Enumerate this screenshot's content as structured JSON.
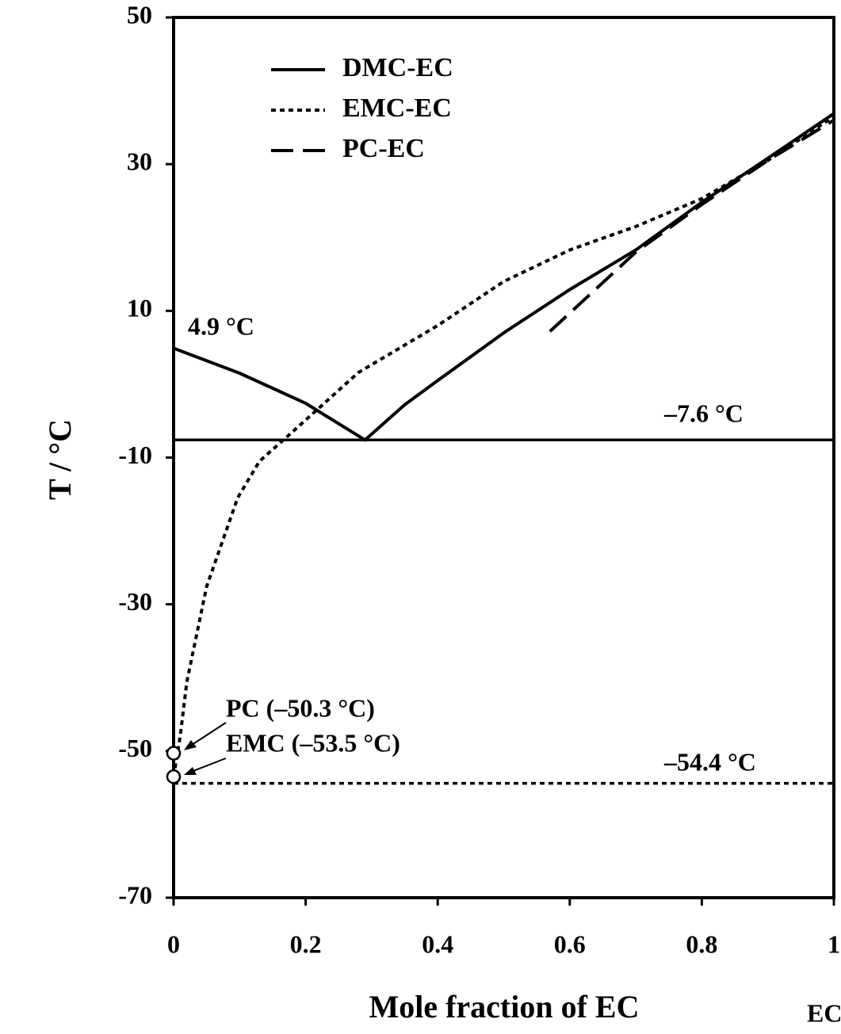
{
  "chart_data": {
    "type": "line",
    "xlabel": "Mole fraction of EC",
    "ylabel": "T / °C",
    "xlim": [
      0,
      1
    ],
    "xticks": [
      0,
      0.2,
      0.4,
      0.6,
      0.8,
      1
    ],
    "ylim": [
      -70,
      50
    ],
    "yticks": [
      50,
      30,
      10,
      -10,
      -30,
      -50,
      -70
    ],
    "legend": "upper left",
    "series": [
      {
        "name": "DMC-EC",
        "color": "#000000",
        "dash": "solid",
        "x": [
          0,
          0.1,
          0.2,
          0.29,
          0.35,
          0.4,
          0.5,
          0.6,
          0.7,
          0.8,
          0.9,
          1
        ],
        "values": [
          4.9,
          1.5,
          -2.6,
          -7.6,
          -2.8,
          0.5,
          7,
          12.9,
          18.3,
          24.8,
          30.8,
          36.9
        ]
      },
      {
        "name": "EMC-EC",
        "color": "#000000",
        "dash": "dotted",
        "x": [
          0,
          0.01,
          0.02,
          0.05,
          0.097,
          0.13,
          0.18,
          0.28,
          0.4,
          0.5,
          0.6,
          0.7,
          0.8,
          0.9,
          1
        ],
        "values": [
          -53.5,
          -48,
          -40.6,
          -27.6,
          -15.5,
          -10.5,
          -6.5,
          1.6,
          8,
          14,
          18.3,
          21.5,
          25.3,
          30.5,
          36.5
        ]
      },
      {
        "name": "PC-EC",
        "color": "#000000",
        "dash": "dashed",
        "x": [
          0.57,
          0.7,
          0.8,
          0.9,
          1
        ],
        "values": [
          7.2,
          18,
          24.5,
          30.5,
          36
        ]
      }
    ],
    "hlines": [
      {
        "y": -7.6,
        "dash": "solid"
      },
      {
        "y": -54.4,
        "dash": "dotted"
      }
    ],
    "points": {
      "x": [
        0,
        0
      ],
      "y": [
        -50.3,
        -53.5
      ]
    },
    "annotations": [
      "4.9 °C",
      "–7.6 °C",
      "PC (–50.3 °C)",
      "EMC (–53.5 °C)",
      "–54.4 °C",
      "EC"
    ]
  }
}
